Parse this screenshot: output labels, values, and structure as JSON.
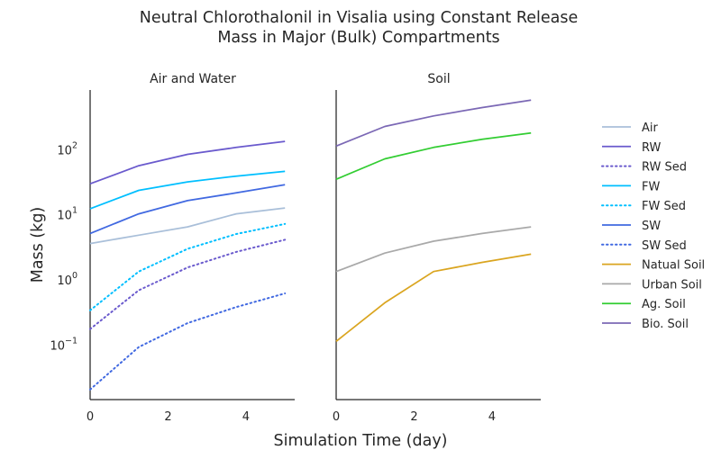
{
  "chart_data": {
    "type": "line",
    "title": "Neutral Chlorothalonil in Visalia using Constant Release",
    "subtitle": "Mass in Major (Bulk) Compartments",
    "xlabel": "Simulation Time (day)",
    "ylabel": "Mass (kg)",
    "yscale": "log",
    "ylim": [
      0.014,
      800
    ],
    "xlim": [
      0,
      5.25
    ],
    "x": [
      0,
      1.25,
      2.5,
      3.75,
      5
    ],
    "xticks": [
      "0",
      "2",
      "4"
    ],
    "xtick_values": [
      0,
      2,
      4
    ],
    "yticks": [
      {
        "base": "10",
        "exp": "2",
        "value": 100
      },
      {
        "base": "10",
        "exp": "1",
        "value": 10
      },
      {
        "base": "10",
        "exp": "0",
        "value": 1
      },
      {
        "base": "10",
        "exp": "−1",
        "value": 0.1
      }
    ],
    "grid": false,
    "legend_position": "right",
    "panels": [
      {
        "title": "Air and Water",
        "series": [
          {
            "name": "Air",
            "color": "#a9bfd9",
            "dash": "solid",
            "values": [
              3.5,
              4.7,
              6.3,
              10,
              12.3
            ]
          },
          {
            "name": "RW",
            "color": "#6a5acd",
            "dash": "solid",
            "values": [
              29,
              55,
              82,
              105,
              130
            ]
          },
          {
            "name": "RW Sed",
            "color": "#6a5acd",
            "dash": "dotted",
            "values": [
              0.17,
              0.67,
              1.5,
              2.6,
              4
            ]
          },
          {
            "name": "FW",
            "color": "#00bfff",
            "dash": "solid",
            "values": [
              12,
              23,
              31,
              38,
              45
            ]
          },
          {
            "name": "FW Sed",
            "color": "#00bfff",
            "dash": "dotted",
            "values": [
              0.33,
              1.3,
              2.9,
              4.9,
              7
            ]
          },
          {
            "name": "SW",
            "color": "#4169e1",
            "dash": "solid",
            "values": [
              5,
              10,
              16,
              21,
              28
            ]
          },
          {
            "name": "SW Sed",
            "color": "#4169e1",
            "dash": "dotted",
            "values": [
              0.02,
              0.09,
              0.21,
              0.37,
              0.6
            ]
          }
        ]
      },
      {
        "title": "Soil",
        "series": [
          {
            "name": "Natual Soil",
            "color": "#daa520",
            "dash": "solid",
            "values": [
              0.11,
              0.43,
              1.3,
              1.8,
              2.4
            ]
          },
          {
            "name": "Urban Soil",
            "color": "#a9a9a9",
            "dash": "solid",
            "values": [
              1.3,
              2.5,
              3.8,
              5,
              6.3
            ]
          },
          {
            "name": "Ag. Soil",
            "color": "#32cd32",
            "dash": "solid",
            "values": [
              34,
              70,
              105,
              140,
              175
            ]
          },
          {
            "name": "Bio. Soil",
            "color": "#7b68b5",
            "dash": "solid",
            "values": [
              110,
              220,
              320,
              430,
              560
            ]
          }
        ]
      }
    ]
  }
}
